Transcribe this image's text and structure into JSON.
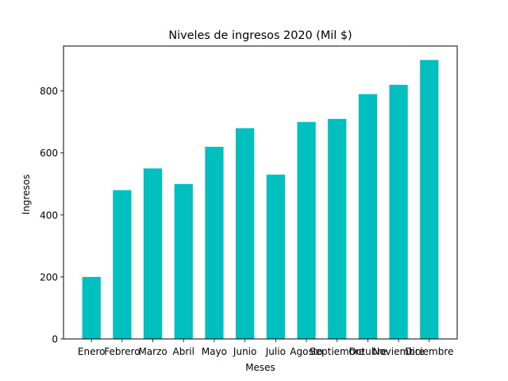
{
  "chart_data": {
    "type": "bar",
    "title": "Niveles de ingresos 2020 (Mil $)",
    "xlabel": "Meses",
    "ylabel": "Ingresos",
    "categories": [
      "Enero",
      "Febrero",
      "Marzo",
      "Abril",
      "Mayo",
      "Junio",
      "Julio",
      "Agosto",
      "Septiembre",
      "Octubre",
      "Noviembre",
      "Diciembre"
    ],
    "values": [
      200,
      480,
      550,
      500,
      620,
      680,
      530,
      700,
      710,
      790,
      820,
      900
    ],
    "ylim": [
      0,
      945
    ],
    "yticks": [
      0,
      200,
      400,
      600,
      800
    ],
    "bar_color": "#00bfbf",
    "grid": false
  }
}
